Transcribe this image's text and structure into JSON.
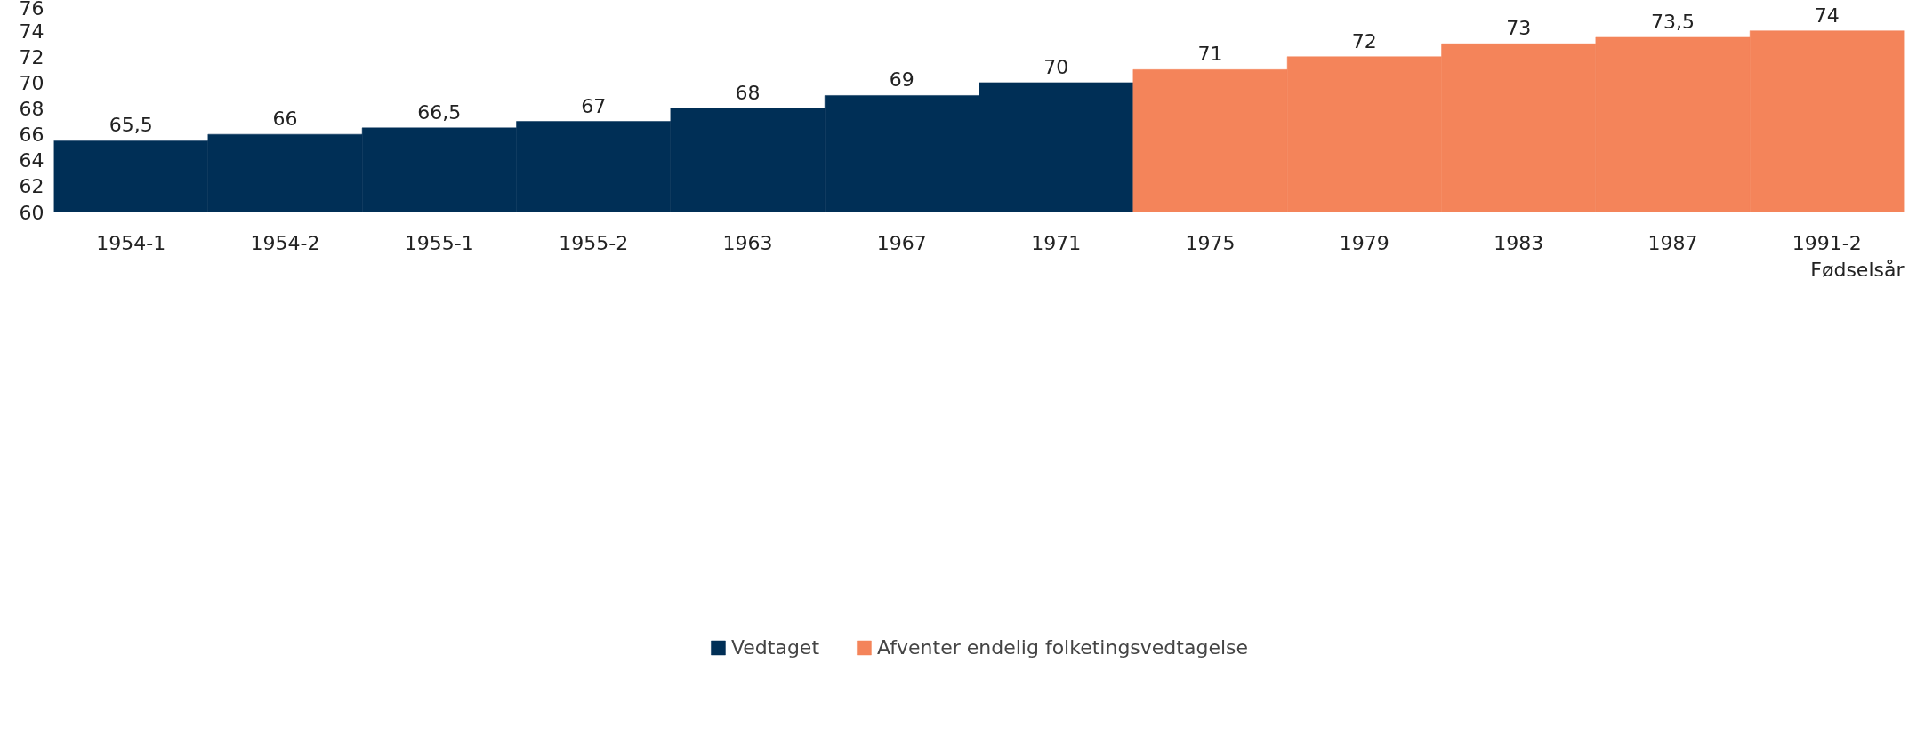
{
  "chart_data": {
    "type": "bar",
    "xlabel": "Fødselsår",
    "categories": [
      "1954-1",
      "1954-2",
      "1955-1",
      "1955-2",
      "1963",
      "1967",
      "1971",
      "1975",
      "1979",
      "1983",
      "1987",
      "1991-2"
    ],
    "series": [
      {
        "name": "Vedtaget",
        "color": "#002f56",
        "values": [
          65.5,
          66,
          66.5,
          67,
          68,
          69,
          70,
          null,
          null,
          null,
          null,
          null
        ],
        "value_labels": [
          "65,5",
          "66",
          "66,5",
          "67",
          "68",
          "69",
          "70",
          null,
          null,
          null,
          null,
          null
        ]
      },
      {
        "name": "Afventer endelig folketingsvedtagelse",
        "color": "#f4845a",
        "values": [
          null,
          null,
          null,
          null,
          null,
          null,
          null,
          71,
          72,
          73,
          73.5,
          74
        ],
        "value_labels": [
          null,
          null,
          null,
          null,
          null,
          null,
          null,
          "71",
          "72",
          "73",
          "73,5",
          "74"
        ]
      }
    ],
    "ylim": [
      60,
      76
    ],
    "yticks": [
      60,
      62,
      64,
      66,
      68,
      70,
      72,
      74,
      76
    ],
    "grid": false,
    "legend": "bottom"
  }
}
